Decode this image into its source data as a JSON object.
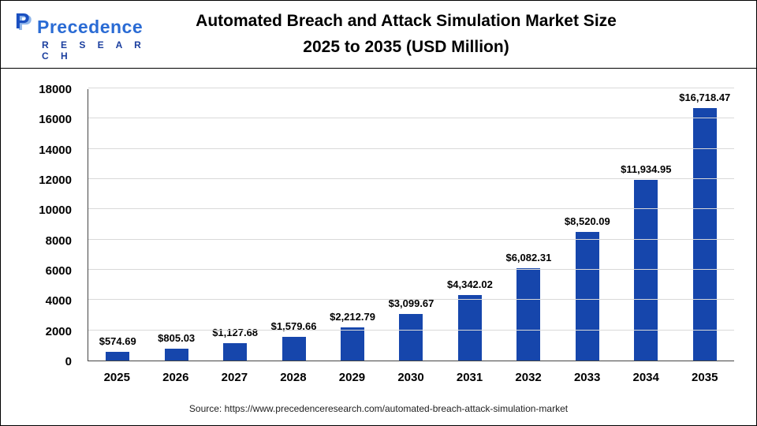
{
  "header": {
    "logo_name": "Precedence",
    "logo_sub": "R E S E A R C H",
    "title_line1": "Automated Breach and Attack Simulation Market Size",
    "title_line2": "2025 to 2035 (USD Million)"
  },
  "chart_data": {
    "type": "bar",
    "title": "Automated Breach and Attack Simulation Market Size 2025 to 2035 (USD Million)",
    "categories": [
      "2025",
      "2026",
      "2027",
      "2028",
      "2029",
      "2030",
      "2031",
      "2032",
      "2033",
      "2034",
      "2035"
    ],
    "values": [
      574.69,
      805.03,
      1127.68,
      1579.66,
      2212.79,
      3099.67,
      4342.02,
      6082.31,
      8520.09,
      11934.95,
      16718.47
    ],
    "value_labels": [
      "$574.69",
      "$805.03",
      "$1,127.68",
      "$1,579.66",
      "$2,212.79",
      "$3,099.67",
      "$4,342.02",
      "$6,082.31",
      "$8,520.09",
      "$11,934.95",
      "$16,718.47"
    ],
    "xlabel": "",
    "ylabel": "",
    "ylim": [
      0,
      18000
    ],
    "ytick_step": 2000,
    "grid": "horizontal",
    "legend": "none",
    "bar_color": "#1646ac"
  },
  "footer": {
    "source": "Source: https://www.precedenceresearch.com/automated-breach-attack-simulation-market"
  }
}
